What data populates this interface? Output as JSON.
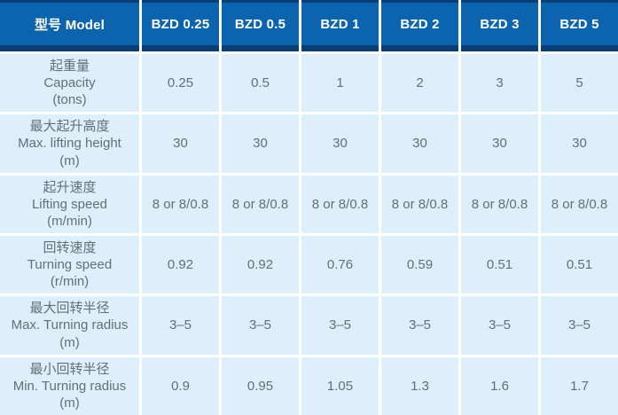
{
  "colors": {
    "header_bg": "#0b64ad",
    "header_edge": "#093f75",
    "header_text": "#ffffff",
    "cell_bg": "#ddeffa",
    "body_text": "#636f78",
    "separator": "#ffffff"
  },
  "table": {
    "header": {
      "model_label": "型号 Model",
      "columns": [
        "BZD 0.25",
        "BZD 0.5",
        "BZD 1",
        "BZD 2",
        "BZD 3",
        "BZD 5"
      ]
    },
    "rows": [
      {
        "label_zh": "起重量",
        "label_en": "Capacity",
        "unit": "(tons)",
        "values": [
          "0.25",
          "0.5",
          "1",
          "2",
          "3",
          "5"
        ]
      },
      {
        "label_zh": "最大起升高度",
        "label_en": "Max. lifting height",
        "unit": "(m)",
        "values": [
          "30",
          "30",
          "30",
          "30",
          "30",
          "30"
        ]
      },
      {
        "label_zh": "起升速度",
        "label_en": "Lifting speed",
        "unit": "(m/min)",
        "values": [
          "8 or 8/0.8",
          "8 or 8/0.8",
          "8 or 8/0.8",
          "8 or 8/0.8",
          "8 or 8/0.8",
          "8 or 8/0.8"
        ]
      },
      {
        "label_zh": "回转速度",
        "label_en": "Turning speed",
        "unit": "(r/min)",
        "values": [
          "0.92",
          "0.92",
          "0.76",
          "0.59",
          "0.51",
          "0.51"
        ]
      },
      {
        "label_zh": "最大回转半径",
        "label_en": "Max. Turning radius",
        "unit": "(m)",
        "values": [
          "3–5",
          "3–5",
          "3–5",
          "3–5",
          "3–5",
          "3–5"
        ]
      },
      {
        "label_zh": "最小回转半径",
        "label_en": "Min. Turning radius",
        "unit": "(m)",
        "values": [
          "0.9",
          "0.95",
          "1.05",
          "1.3",
          "1.6",
          "1.7"
        ]
      }
    ]
  }
}
